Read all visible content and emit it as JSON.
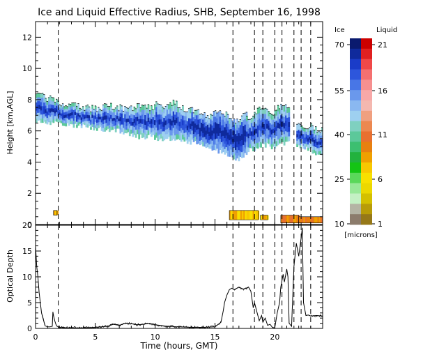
{
  "chart_data": [
    {
      "type": "heatmap",
      "title": "Ice and Liquid Effective Radius, SHB, September 16, 1998",
      "xlabel": "",
      "ylabel": "Height [km,AGL]",
      "xlim": [
        0,
        24
      ],
      "ylim": [
        0,
        13
      ],
      "y_ticks": [
        "0",
        "2",
        "4",
        "6",
        "8",
        "10",
        "12"
      ],
      "dashed_lines_x": [
        1.9,
        16.5,
        18.3,
        19.0,
        20.0,
        20.6,
        21.6,
        22.2,
        23.0
      ],
      "ice_cloud": [
        {
          "x0": 0.0,
          "x1": 9.8,
          "top": [
            8.3,
            8.1,
            7.8,
            7.6,
            7.5,
            7.4,
            7.6,
            7.5,
            7.4,
            7.6,
            7.4
          ],
          "base": [
            6.6,
            6.5,
            6.5,
            6.4,
            6.3,
            6.2,
            6.1,
            6.0,
            5.8,
            5.6,
            5.7
          ]
        },
        {
          "x0": 9.9,
          "x1": 17.6,
          "top": [
            7.8,
            7.6,
            7.9,
            7.5,
            7.3,
            7.1,
            6.9,
            7.3,
            7.0,
            6.6,
            7.1
          ],
          "base": [
            5.6,
            5.4,
            5.6,
            5.3,
            5.3,
            5.1,
            4.9,
            4.7,
            4.4,
            4.2,
            4.5
          ]
        },
        {
          "x0": 17.6,
          "x1": 21.2,
          "top": [
            6.8,
            7.2,
            7.6,
            7.0,
            7.8,
            7.3
          ],
          "base": [
            4.8,
            4.9,
            5.1,
            5.0,
            5.2,
            5.3
          ]
        },
        {
          "x0": 21.8,
          "x1": 24.0,
          "top": [
            6.5,
            6.2,
            6.4,
            6.1,
            6.0
          ],
          "base": [
            5.1,
            5.0,
            4.8,
            4.6,
            4.3
          ]
        }
      ],
      "liquid_cloud": [
        {
          "x0": 1.5,
          "x1": 1.8,
          "top": 0.9,
          "base": 0.6
        },
        {
          "x0": 16.2,
          "x1": 18.6,
          "top": 0.9,
          "base": 0.3
        },
        {
          "x0": 18.8,
          "x1": 19.4,
          "top": 0.6,
          "base": 0.3
        },
        {
          "x0": 20.5,
          "x1": 22.0,
          "top": 0.6,
          "base": 0.1
        },
        {
          "x0": 22.0,
          "x1": 24.0,
          "top": 0.5,
          "base": 0.1
        }
      ],
      "colorbar": {
        "ice_label": "Ice",
        "liquid_label": "Liquid",
        "units": "[microns]",
        "ice_ticks": [
          "70",
          "55",
          "40",
          "25",
          "10"
        ],
        "liquid_ticks": [
          "21",
          "16",
          "11",
          "6",
          "1"
        ],
        "ice_colors": [
          "#0a1a6e",
          "#0f2a9c",
          "#1a3cc8",
          "#2d56dc",
          "#4876e6",
          "#6a98ec",
          "#8ab8f0",
          "#9ed0f0",
          "#7fd0c0",
          "#5cc89a",
          "#3cbf70",
          "#22b23e",
          "#14c414",
          "#5ad85a",
          "#98e898",
          "#c4f0c4",
          "#b4b4a4",
          "#8c7c6c"
        ],
        "liquid_colors": [
          "#cc0000",
          "#e02020",
          "#f04848",
          "#f47070",
          "#f69090",
          "#f8a8a8",
          "#f4b8b0",
          "#f0a080",
          "#ec8850",
          "#e87030",
          "#e88010",
          "#f0a000",
          "#f8c800",
          "#f8e000",
          "#ecd800",
          "#d4c000",
          "#b89c08",
          "#967818"
        ]
      }
    },
    {
      "type": "line",
      "xlabel": "Time (hours, GMT)",
      "ylabel": "Optical Depth",
      "xlim": [
        0,
        24
      ],
      "ylim": [
        0,
        20
      ],
      "x_ticks": [
        "0",
        "5",
        "10",
        "15",
        "20"
      ],
      "y_ticks": [
        "0",
        "5",
        "10",
        "15",
        "20"
      ],
      "series": [
        {
          "x": [
            0.0,
            0.1,
            0.2,
            0.3,
            0.5,
            0.8,
            1.0,
            1.2,
            1.4,
            1.45,
            1.5,
            1.6,
            1.7,
            1.8,
            2.0,
            2.5,
            3.0,
            4.0,
            5.0,
            6.0,
            6.5,
            7.0,
            7.5,
            8.0,
            8.5,
            9.0,
            9.5,
            10.0,
            11.0,
            12.0,
            13.0,
            14.0,
            15.0,
            15.5,
            15.7,
            15.8,
            16.0,
            16.2,
            16.4,
            16.6,
            17.0,
            17.4,
            17.8,
            18.0,
            18.2,
            18.3,
            18.5,
            18.7,
            18.9,
            19.0,
            19.2,
            19.4,
            19.6,
            19.8,
            20.0,
            20.2,
            20.4,
            20.5,
            20.7,
            20.8,
            21.0,
            21.1,
            21.2,
            21.4,
            21.6,
            21.8,
            22.0,
            22.2,
            22.3,
            22.4,
            22.6,
            22.8,
            23.0,
            23.5,
            24.0
          ],
          "y": [
            16,
            12,
            10,
            7,
            3,
            0.5,
            0.3,
            0.3,
            0.4,
            3.2,
            2.5,
            1.5,
            0.8,
            0.4,
            0.2,
            0.1,
            0.1,
            0.1,
            0.2,
            0.4,
            0.8,
            0.6,
            1.0,
            0.9,
            0.7,
            0.8,
            1.0,
            0.7,
            0.4,
            0.3,
            0.2,
            0.2,
            0.3,
            1.2,
            3.5,
            5.0,
            6.5,
            7.5,
            7.8,
            7.5,
            8.0,
            7.6,
            8.0,
            7.2,
            4.0,
            5.0,
            3.2,
            1.5,
            2.5,
            1.2,
            2.0,
            0.6,
            0.8,
            0.2,
            0.1,
            3.0,
            5.0,
            8.0,
            10.5,
            9.0,
            11.5,
            10.0,
            1.0,
            0.4,
            12.0,
            16.5,
            14.0,
            17.5,
            19.5,
            5.0,
            2.5,
            2.6,
            2.4,
            2.5,
            2.4
          ]
        }
      ]
    }
  ]
}
